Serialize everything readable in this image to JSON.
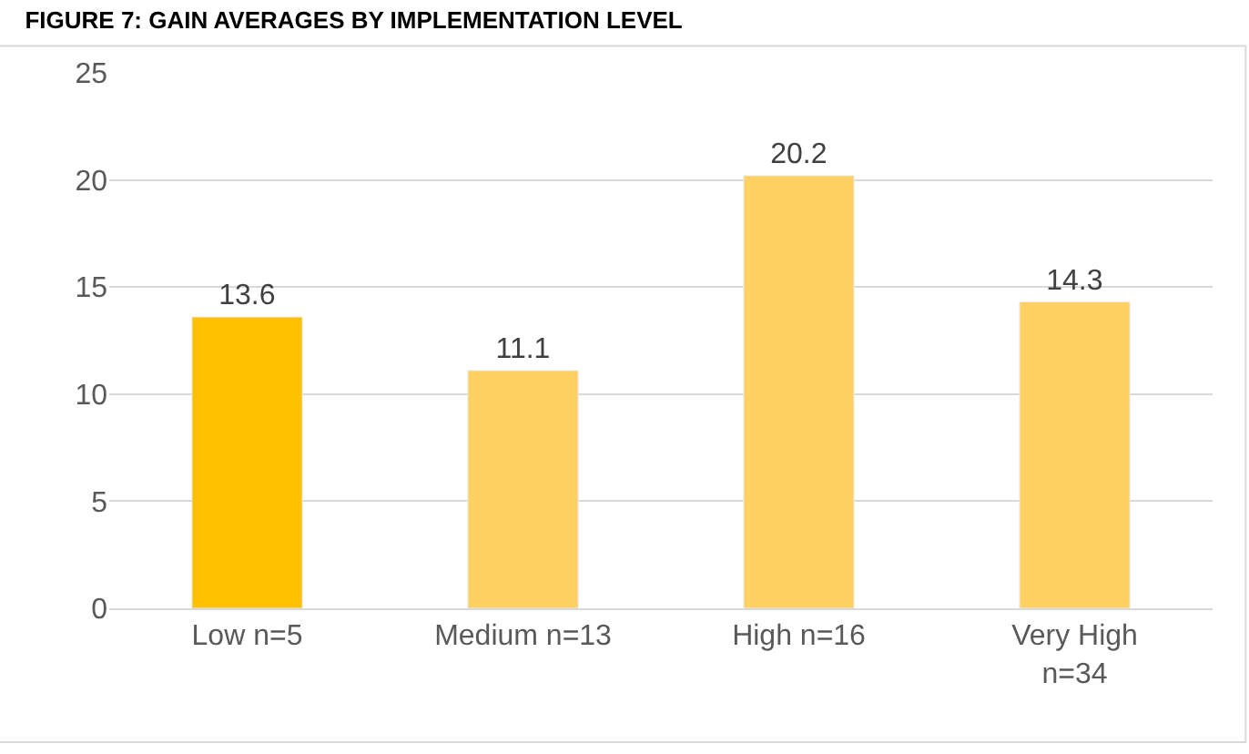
{
  "chart_data": {
    "type": "bar",
    "title": "FIGURE 7: GAIN AVERAGES BY IMPLEMENTATION LEVEL",
    "categories": [
      "Low n=5",
      "Medium n=13",
      "High n=16",
      "Very High n=34"
    ],
    "values": [
      13.6,
      11.1,
      20.2,
      14.3
    ],
    "colors": [
      "#ffc000",
      "#ffd062",
      "#ffd062",
      "#ffd062"
    ],
    "ylim": [
      0,
      25
    ],
    "yticks": [
      0,
      5,
      10,
      15,
      20,
      25
    ],
    "grid": "y",
    "data_labels": true
  }
}
